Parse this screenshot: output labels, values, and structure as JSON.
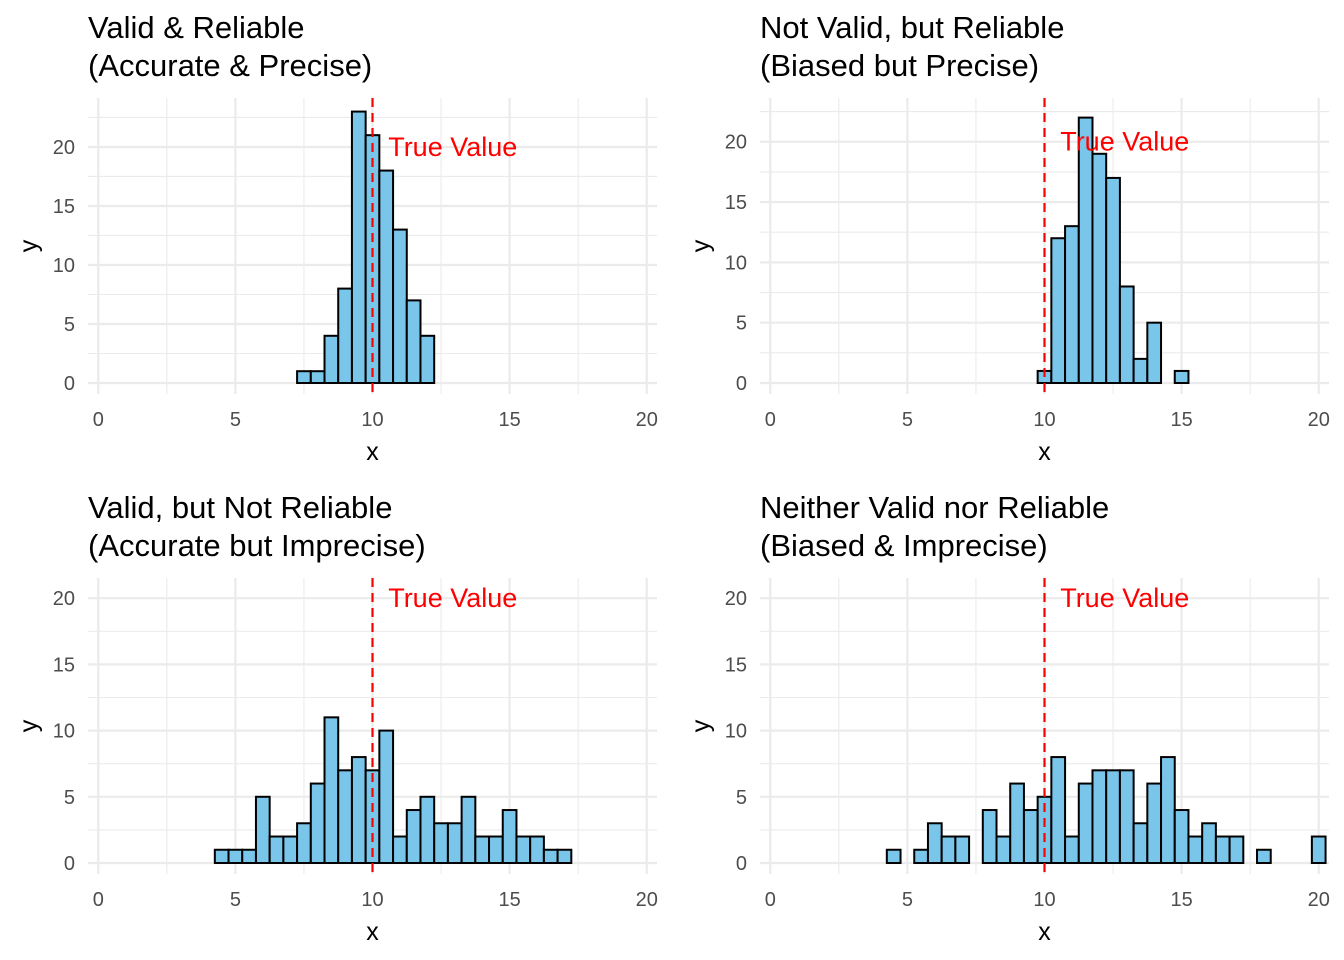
{
  "colors": {
    "bar_fill": "#7ac6ea",
    "bar_stroke": "#000000",
    "reference_line": "#ff0000",
    "annotation": "#ff0000",
    "grid": "#ebebeb",
    "tick_text": "#4d4d4d",
    "title_text": "#000000"
  },
  "chart_data": [
    {
      "type": "bar",
      "title": [
        "Valid & Reliable",
        "(Accurate & Precise)"
      ],
      "xlabel": "x",
      "ylabel": "y",
      "xlim": [
        0,
        20
      ],
      "ylim": [
        0,
        23
      ],
      "x_ticks": [
        0,
        5,
        10,
        15,
        20
      ],
      "y_ticks": [
        0,
        5,
        10,
        15,
        20
      ],
      "grid": true,
      "bin_width": 0.5,
      "bin_start": 0.25,
      "counts": [
        0,
        0,
        0,
        0,
        0,
        0,
        0,
        0,
        0,
        0,
        0,
        0,
        0,
        0,
        1,
        1,
        4,
        8,
        23,
        21,
        18,
        13,
        7,
        4,
        0,
        0,
        0,
        0,
        0,
        0,
        0,
        0,
        0,
        0,
        0,
        0,
        0,
        0,
        0,
        0
      ],
      "reference_line": {
        "x": 10
      },
      "annotation": {
        "text": "True Value",
        "x": 10.5,
        "y": 20
      }
    },
    {
      "type": "bar",
      "title": [
        "Not Valid, but Reliable",
        "(Biased but Precise)"
      ],
      "xlabel": "x",
      "ylabel": "y",
      "xlim": [
        0,
        20
      ],
      "ylim": [
        0,
        22.5
      ],
      "x_ticks": [
        0,
        5,
        10,
        15,
        20
      ],
      "y_ticks": [
        0,
        5,
        10,
        15,
        20
      ],
      "grid": true,
      "bin_width": 0.5,
      "bin_start": 0.25,
      "counts": [
        0,
        0,
        0,
        0,
        0,
        0,
        0,
        0,
        0,
        0,
        0,
        0,
        0,
        0,
        0,
        0,
        0,
        0,
        0,
        1,
        12,
        13,
        22,
        19,
        17,
        8,
        2,
        5,
        0,
        1,
        0,
        0,
        0,
        0,
        0,
        0,
        0,
        0,
        0,
        0
      ],
      "reference_line": {
        "x": 10
      },
      "annotation": {
        "text": "True Value",
        "x": 10.5,
        "y": 20
      }
    },
    {
      "type": "bar",
      "title": [
        "Valid, but Not Reliable",
        "(Accurate but Imprecise)"
      ],
      "xlabel": "x",
      "ylabel": "y",
      "xlim": [
        0,
        20
      ],
      "ylim": [
        0,
        20.5
      ],
      "x_ticks": [
        0,
        5,
        10,
        15,
        20
      ],
      "y_ticks": [
        0,
        5,
        10,
        15,
        20
      ],
      "grid": true,
      "bin_width": 0.5,
      "bin_start": 0.25,
      "counts": [
        0,
        0,
        0,
        0,
        0,
        0,
        0,
        0,
        1,
        1,
        1,
        5,
        2,
        2,
        3,
        6,
        11,
        7,
        8,
        7,
        10,
        2,
        4,
        5,
        3,
        3,
        5,
        2,
        2,
        4,
        2,
        2,
        1,
        1,
        0,
        0,
        0,
        0,
        0,
        0
      ],
      "reference_line": {
        "x": 10
      },
      "annotation": {
        "text": "True Value",
        "x": 10.5,
        "y": 20
      }
    },
    {
      "type": "bar",
      "title": [
        "Neither Valid nor Reliable",
        "(Biased & Imprecise)"
      ],
      "xlabel": "x",
      "ylabel": "y",
      "xlim": [
        0,
        20
      ],
      "ylim": [
        0,
        20.5
      ],
      "x_ticks": [
        0,
        5,
        10,
        15,
        20
      ],
      "y_ticks": [
        0,
        5,
        10,
        15,
        20
      ],
      "grid": true,
      "bin_width": 0.5,
      "bin_start": 0.25,
      "counts": [
        0,
        0,
        0,
        0,
        0,
        0,
        0,
        0,
        1,
        0,
        1,
        3,
        2,
        2,
        0,
        4,
        2,
        6,
        4,
        5,
        8,
        2,
        6,
        7,
        7,
        7,
        3,
        6,
        8,
        4,
        2,
        3,
        2,
        2,
        0,
        1,
        0,
        0,
        0,
        2
      ],
      "reference_line": {
        "x": 10
      },
      "annotation": {
        "text": "True Value",
        "x": 10.5,
        "y": 20
      }
    }
  ]
}
